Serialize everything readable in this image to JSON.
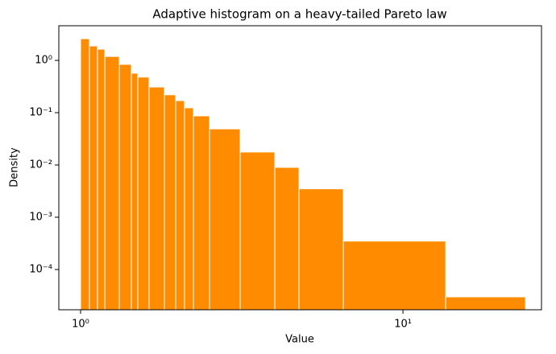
{
  "chart_data": {
    "type": "histogram",
    "title": "Adaptive histogram on a heavy-tailed Pareto law",
    "x_label": "Value",
    "y_label": "Density",
    "color": "#ff8c00",
    "edgecolor": "#ffffff",
    "x_scale": "log",
    "y_scale": "log",
    "bins": [
      1.0,
      1.065,
      1.128,
      1.189,
      1.318,
      1.437,
      1.505,
      1.631,
      1.82,
      1.972,
      2.101,
      2.239,
      2.512,
      3.126,
      4.004,
      4.76,
      6.531,
      13.57,
      23.99
    ],
    "values": [
      2.6,
      1.89,
      1.64,
      1.19,
      0.84,
      0.57,
      0.48,
      0.31,
      0.22,
      0.17,
      0.124,
      0.087,
      0.049,
      0.0177,
      0.009,
      0.0035,
      0.00035,
      3e-05
    ],
    "xlim": [
      0.856,
      26.9
    ],
    "ylim": [
      1.7e-05,
      4.6
    ],
    "xticks": [
      {
        "value": 1,
        "label": "10⁰"
      },
      {
        "value": 10,
        "label": "10¹"
      }
    ],
    "yticks": [
      {
        "value": 0.0001,
        "label": "10⁻⁴"
      },
      {
        "value": 0.001,
        "label": "10⁻³"
      },
      {
        "value": 0.01,
        "label": "10⁻²"
      },
      {
        "value": 0.1,
        "label": "10⁻¹"
      },
      {
        "value": 1,
        "label": "10⁰"
      }
    ]
  }
}
